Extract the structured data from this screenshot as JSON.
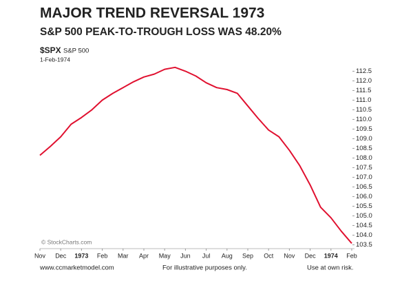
{
  "chart_data": {
    "type": "line",
    "title": "MAJOR TREND REVERSAL 1973",
    "subtitle": "S&P 500 PEAK-TO-TROUGH LOSS WAS 48.20%",
    "symbol": "$SPX",
    "symbol_name": "S&P 500",
    "date": "1-Feb-1974",
    "watermark": "© StockCharts.com",
    "footer": [
      "www.ccmarketmodel.com",
      "For illustrative purposes only.",
      "Use at own risk."
    ],
    "grid": false,
    "xlim": [
      0,
      15
    ],
    "xticks": [
      {
        "value": 0,
        "label": "Nov"
      },
      {
        "value": 1,
        "label": "Dec"
      },
      {
        "value": 2,
        "label": "1973"
      },
      {
        "value": 3,
        "label": "Feb"
      },
      {
        "value": 4,
        "label": "Mar"
      },
      {
        "value": 5,
        "label": "Apr"
      },
      {
        "value": 6,
        "label": "May"
      },
      {
        "value": 7,
        "label": "Jun"
      },
      {
        "value": 8,
        "label": "Jul"
      },
      {
        "value": 9,
        "label": "Aug"
      },
      {
        "value": 10,
        "label": "Sep"
      },
      {
        "value": 11,
        "label": "Oct"
      },
      {
        "value": 12,
        "label": "Nov"
      },
      {
        "value": 13,
        "label": "Dec"
      },
      {
        "value": 14,
        "label": "1974"
      },
      {
        "value": 15,
        "label": "Feb"
      }
    ],
    "ylim": [
      103.3,
      112.8
    ],
    "yticks": [
      {
        "value": 103.5,
        "label": "103.5"
      },
      {
        "value": 104,
        "label": "104.0"
      },
      {
        "value": 104.5,
        "label": "104.5"
      },
      {
        "value": 105,
        "label": "105.0"
      },
      {
        "value": 105.5,
        "label": "105.5"
      },
      {
        "value": 106,
        "label": "106.0"
      },
      {
        "value": 106.5,
        "label": "106.5"
      },
      {
        "value": 107,
        "label": "107.0"
      },
      {
        "value": 107.5,
        "label": "107.5"
      },
      {
        "value": 108,
        "label": "108.0"
      },
      {
        "value": 108.5,
        "label": "108.5"
      },
      {
        "value": 109,
        "label": "109.0"
      },
      {
        "value": 109.5,
        "label": "109.5"
      },
      {
        "value": 110,
        "label": "110.0"
      },
      {
        "value": 110.5,
        "label": "110.5"
      },
      {
        "value": 111,
        "label": "111.0"
      },
      {
        "value": 111.5,
        "label": "111.5"
      },
      {
        "value": 112,
        "label": "112.0"
      },
      {
        "value": 112.5,
        "label": "112.5"
      }
    ],
    "x": [
      0,
      0.5,
      1,
      1.5,
      2,
      2.5,
      3,
      3.5,
      4,
      4.5,
      5,
      5.5,
      6,
      6.5,
      7,
      7.5,
      8,
      8.5,
      9,
      9.5,
      10,
      10.5,
      11,
      11.5,
      12,
      12.5,
      13,
      13.5,
      14,
      14.5,
      15
    ],
    "series": [
      {
        "color": "#e0102f",
        "values": [
          108.14,
          108.6,
          109.1,
          109.75,
          110.1,
          110.5,
          111.0,
          111.35,
          111.65,
          111.95,
          112.2,
          112.35,
          112.6,
          112.7,
          112.5,
          112.25,
          111.9,
          111.65,
          111.55,
          111.35,
          110.7,
          110.05,
          109.45,
          109.1,
          108.4,
          107.6,
          106.6,
          105.45,
          104.9,
          104.2,
          103.57
        ]
      }
    ]
  }
}
